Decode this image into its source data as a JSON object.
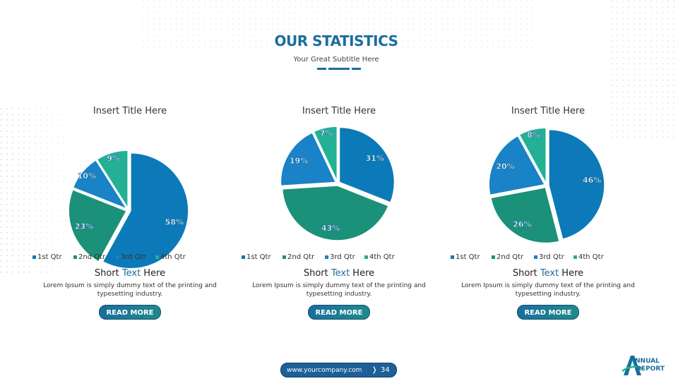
{
  "header": {
    "title": "OUR STATISTICS",
    "subtitle": "Your Great Subtitle Here"
  },
  "colors": {
    "q1": "#0c7ab8",
    "q2": "#1b9179",
    "q3": "#1a82c6",
    "q4": "#23b094",
    "accent": "#1a6e9e",
    "button_start": "#1a6e9e",
    "button_end": "#1f8a8a"
  },
  "panels": [
    {
      "title": "Insert Title Here",
      "heading_prefix": "Short ",
      "heading_highlight": "Text",
      "heading_suffix": " Here",
      "body": "Lorem Ipsum is simply dummy text of the printing and typesetting industry.",
      "button_label": "READ MORE"
    },
    {
      "title": "Insert Title Here",
      "heading_prefix": "Short ",
      "heading_highlight": "Text",
      "heading_suffix": " Here",
      "body": "Lorem Ipsum is simply dummy text of the printing and typesetting industry.",
      "button_label": "READ MORE"
    },
    {
      "title": "Insert Title Here",
      "heading_prefix": "Short ",
      "heading_highlight": "Text",
      "heading_suffix": " Here",
      "body": "Lorem Ipsum is simply dummy text of the printing and typesetting industry.",
      "button_label": "READ MORE"
    }
  ],
  "legend": [
    "1st Qtr",
    "2nd Qtr",
    "3rd Qtr",
    "4th Qtr"
  ],
  "chart_data": [
    {
      "type": "pie",
      "title": "Insert Title Here",
      "categories": [
        "1st Qtr",
        "2nd Qtr",
        "3rd Qtr",
        "4th Qtr"
      ],
      "values": [
        58,
        23,
        10,
        9
      ],
      "labels": [
        "58%",
        "23%",
        "10%",
        "9%"
      ],
      "legend_position": "bottom"
    },
    {
      "type": "pie",
      "title": "Insert Title Here",
      "categories": [
        "1st Qtr",
        "2nd Qtr",
        "3rd Qtr",
        "4th Qtr"
      ],
      "values": [
        31,
        43,
        19,
        7
      ],
      "labels": [
        "31%",
        "43%",
        "19%",
        "7%"
      ],
      "legend_position": "bottom"
    },
    {
      "type": "pie",
      "title": "Insert Title Here",
      "categories": [
        "1st Qtr",
        "2nd Qtr",
        "3rd Qtr",
        "4th Qtr"
      ],
      "values": [
        46,
        26,
        20,
        8
      ],
      "labels": [
        "46%",
        "26%",
        "20%",
        "8%"
      ],
      "legend_position": "bottom"
    }
  ],
  "footer": {
    "url": "www.yourcompany.com",
    "chevron": "❭",
    "page_number": "34"
  },
  "logo": {
    "line1": "NNUAL",
    "line2": "REPORT",
    "mark": "A"
  }
}
